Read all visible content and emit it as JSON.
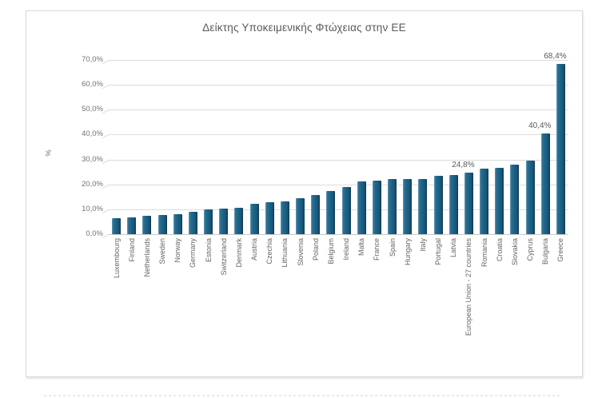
{
  "chart_data": {
    "type": "bar",
    "title": "Δείκτης Υποκειμενικής Φτώχειας στην ΕΕ",
    "xlabel": "",
    "ylabel": "%",
    "ylim": [
      0,
      70
    ],
    "grid": true,
    "legend": false,
    "y_tick_labels": [
      "0,0%",
      "10,0%",
      "20,0%",
      "30,0%",
      "40,0%",
      "50,0%",
      "60,0%",
      "70,0%"
    ],
    "categories": [
      "Luxembourg",
      "Finland",
      "Netherlands",
      "Sweden",
      "Norway",
      "Germany",
      "Estonia",
      "Switzerland",
      "Denmark",
      "Austria",
      "Czechia",
      "Lithuania",
      "Slovenia",
      "Poland",
      "Belgium",
      "Ireland",
      "Malta",
      "France",
      "Spain",
      "Hungary",
      "Italy",
      "Portugal",
      "Latvia",
      "European Union - 27 countries",
      "Romania",
      "Croatia",
      "Slovakia",
      "Cyprus",
      "Bulgaria",
      "Greece"
    ],
    "values": [
      6.4,
      6.8,
      7.3,
      7.7,
      7.9,
      9.0,
      9.8,
      10.3,
      10.7,
      12.3,
      12.9,
      13.2,
      14.5,
      15.7,
      17.2,
      18.9,
      21.2,
      21.4,
      22.0,
      22.1,
      22.2,
      23.3,
      23.9,
      24.8,
      26.2,
      26.8,
      27.9,
      29.7,
      40.4,
      68.4
    ],
    "data_labels": [
      null,
      null,
      null,
      null,
      null,
      null,
      null,
      null,
      null,
      null,
      null,
      null,
      null,
      null,
      null,
      null,
      null,
      null,
      null,
      null,
      null,
      null,
      null,
      "24,8%",
      null,
      null,
      null,
      null,
      "40,4%",
      "68,4%"
    ]
  },
  "colors": {
    "bar_main": "#1e6286",
    "bar_light": "#2a7195",
    "bar_dark": "#0d3b54",
    "gridline": "#dcdcdc",
    "axis_text": "#737373",
    "label_text": "#595959",
    "panel_border": "#d8d8d8",
    "background": "#ffffff"
  }
}
